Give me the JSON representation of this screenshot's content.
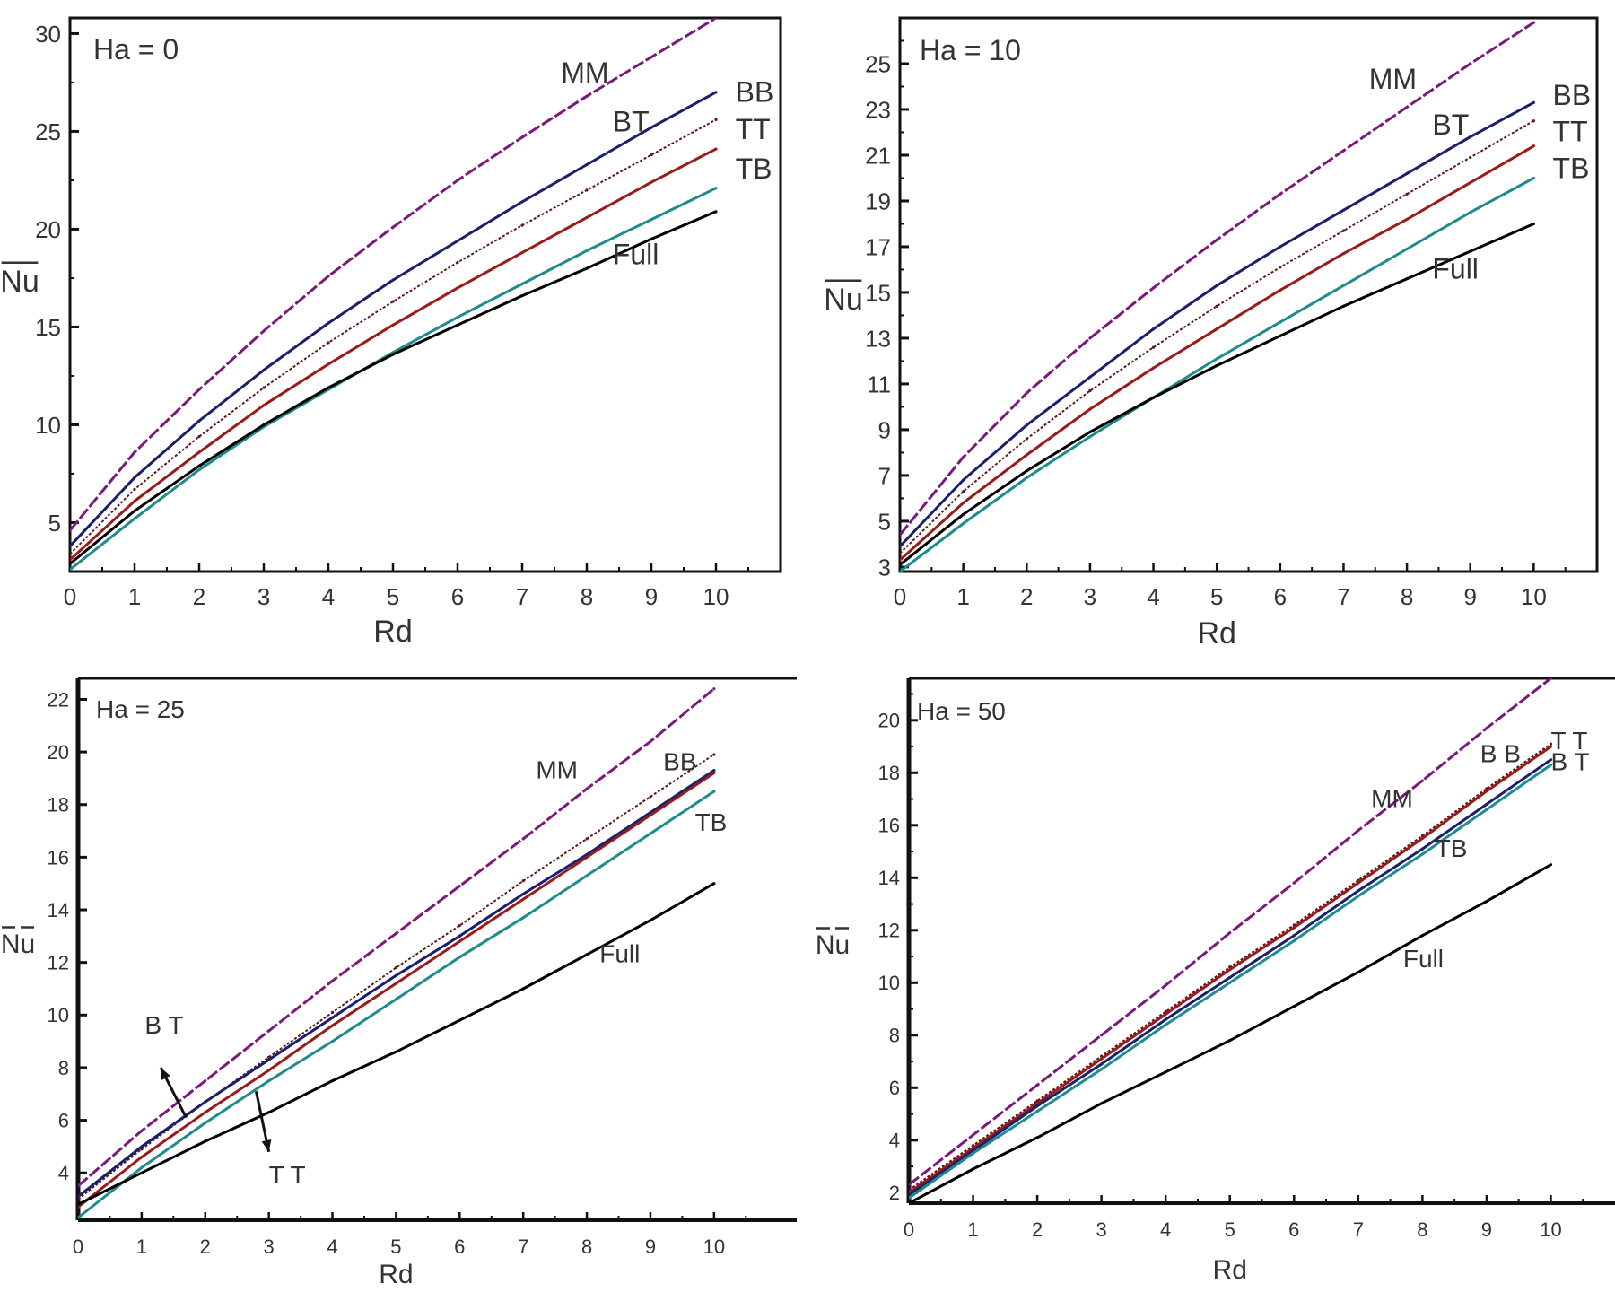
{
  "chart_data": [
    {
      "type": "line",
      "title": "Ha = 0",
      "xlabel": "Rd",
      "ylabel": "Nu",
      "ylabel_overline": true,
      "xlim": [
        0,
        11
      ],
      "ylim": [
        2.5,
        30.8
      ],
      "xticks": [
        0,
        1,
        2,
        3,
        4,
        5,
        6,
        7,
        8,
        9,
        10
      ],
      "xtick_labels": [
        "0",
        "1",
        "2",
        "3",
        "4",
        "5",
        "6",
        "7",
        "8",
        "9",
        "10"
      ],
      "yticks": [
        5,
        10,
        15,
        20,
        25,
        30
      ],
      "ytick_labels": [
        "5",
        "10",
        "15",
        "20",
        "25",
        "30"
      ],
      "grid": false,
      "x": [
        0,
        1,
        2,
        3,
        4,
        5,
        6,
        7,
        8,
        9,
        10
      ],
      "series": [
        {
          "name": "MM",
          "color": "#7b1a7b",
          "values": [
            4.6,
            8.6,
            11.8,
            14.8,
            17.6,
            20.1,
            22.5,
            24.7,
            26.8,
            28.8,
            30.8
          ]
        },
        {
          "name": "BT",
          "color": "#1a1f6e",
          "values": [
            3.8,
            7.3,
            10.2,
            12.8,
            15.2,
            17.4,
            19.4,
            21.4,
            23.3,
            25.2,
            27.0
          ]
        },
        {
          "name": "BB",
          "color": "#5a1a1a",
          "values": [
            3.4,
            6.7,
            9.4,
            11.9,
            14.2,
            16.3,
            18.3,
            20.2,
            22.0,
            23.8,
            25.6
          ]
        },
        {
          "name": "TT",
          "color": "#9b1b1b",
          "values": [
            3.1,
            6.1,
            8.6,
            11.0,
            13.1,
            15.1,
            17.0,
            18.8,
            20.6,
            22.4,
            24.1
          ]
        },
        {
          "name": "TB",
          "color": "#1f8b8b",
          "values": [
            2.6,
            5.2,
            7.7,
            9.9,
            11.8,
            13.7,
            15.5,
            17.2,
            18.9,
            20.5,
            22.1
          ]
        },
        {
          "name": "Full",
          "color": "#000000",
          "values": [
            2.9,
            5.6,
            7.9,
            10.0,
            11.9,
            13.6,
            15.1,
            16.6,
            18.0,
            19.5,
            20.9
          ]
        }
      ],
      "annotations": [
        {
          "text": "MM",
          "x": 7.6,
          "y": 27.5
        },
        {
          "text": "BT",
          "x": 8.4,
          "y": 25.0
        },
        {
          "text": "BB",
          "x": 10.3,
          "y": 26.5
        },
        {
          "text": "TT",
          "x": 10.3,
          "y": 24.6
        },
        {
          "text": "TB",
          "x": 10.3,
          "y": 22.6
        },
        {
          "text": "Full",
          "x": 8.4,
          "y": 18.2
        }
      ]
    },
    {
      "type": "line",
      "title": "Ha = 10",
      "xlabel": "Rd",
      "ylabel": "Nu",
      "ylabel_overline": true,
      "xlim": [
        0,
        11
      ],
      "ylim": [
        2.8,
        27
      ],
      "xticks": [
        0,
        1,
        2,
        3,
        4,
        5,
        6,
        7,
        8,
        9,
        10
      ],
      "xtick_labels": [
        "0",
        "1",
        "2",
        "3",
        "4",
        "5",
        "6",
        "7",
        "8",
        "9",
        "10"
      ],
      "yticks": [
        3,
        5,
        7,
        9,
        11,
        13,
        15,
        17,
        19,
        21,
        23,
        25
      ],
      "ytick_labels": [
        "3",
        "5",
        "7",
        "9",
        "11",
        "13",
        "15",
        "17",
        "19",
        "21",
        "23",
        "25"
      ],
      "grid": false,
      "x": [
        0,
        1,
        2,
        3,
        4,
        5,
        6,
        7,
        8,
        9,
        10
      ],
      "series": [
        {
          "name": "MM",
          "color": "#7b1a7b",
          "values": [
            4.4,
            7.8,
            10.6,
            13.0,
            15.2,
            17.3,
            19.3,
            21.2,
            23.1,
            25.0,
            26.8
          ]
        },
        {
          "name": "BT",
          "color": "#1a1f6e",
          "values": [
            3.9,
            6.8,
            9.2,
            11.3,
            13.4,
            15.3,
            17.0,
            18.6,
            20.2,
            21.8,
            23.3
          ]
        },
        {
          "name": "BB",
          "color": "#5a1a1a",
          "values": [
            3.6,
            6.3,
            8.6,
            10.7,
            12.6,
            14.4,
            16.1,
            17.7,
            19.3,
            20.9,
            22.5
          ]
        },
        {
          "name": "TT",
          "color": "#9b1b1b",
          "values": [
            3.3,
            5.8,
            7.9,
            9.9,
            11.7,
            13.4,
            15.1,
            16.7,
            18.2,
            19.8,
            21.4
          ]
        },
        {
          "name": "TB",
          "color": "#1f8b8b",
          "values": [
            2.8,
            4.9,
            6.9,
            8.7,
            10.4,
            12.1,
            13.7,
            15.3,
            16.9,
            18.5,
            20.0
          ]
        },
        {
          "name": "Full",
          "color": "#000000",
          "values": [
            3.1,
            5.3,
            7.2,
            8.9,
            10.4,
            11.8,
            13.1,
            14.4,
            15.6,
            16.8,
            18.0
          ]
        }
      ],
      "annotations": [
        {
          "text": "MM",
          "x": 7.4,
          "y": 23.9
        },
        {
          "text": "BT",
          "x": 8.4,
          "y": 21.9
        },
        {
          "text": "BB",
          "x": 10.3,
          "y": 23.2
        },
        {
          "text": "TT",
          "x": 10.3,
          "y": 21.6
        },
        {
          "text": "TB",
          "x": 10.3,
          "y": 20.0
        },
        {
          "text": "Full",
          "x": 8.4,
          "y": 15.6
        }
      ]
    },
    {
      "type": "line",
      "title": "Ha = 25",
      "xlabel": "Rd",
      "ylabel": "Nu",
      "ylabel_overline": true,
      "xlim": [
        0,
        11.3
      ],
      "ylim": [
        2.2,
        22.8
      ],
      "xticks": [
        0,
        1,
        2,
        3,
        4,
        5,
        6,
        7,
        8,
        9,
        10
      ],
      "xtick_labels": [
        "0",
        "1",
        "2",
        "3",
        "4",
        "5",
        "6",
        "7",
        "8",
        "9",
        "10"
      ],
      "yticks": [
        4,
        6,
        8,
        10,
        12,
        14,
        16,
        18,
        20,
        22
      ],
      "ytick_labels": [
        "4",
        "6",
        "8",
        "10",
        "12",
        "14",
        "16",
        "18",
        "20",
        "22"
      ],
      "grid": false,
      "x": [
        0,
        1,
        2,
        3,
        4,
        5,
        6,
        7,
        8,
        9,
        10
      ],
      "series": [
        {
          "name": "MM",
          "color": "#7b1a7b",
          "values": [
            3.5,
            5.6,
            7.5,
            9.4,
            11.3,
            13.1,
            14.9,
            16.7,
            18.6,
            20.4,
            22.4
          ]
        },
        {
          "name": "BB",
          "color": "#5a1a1a",
          "values": [
            3.0,
            4.9,
            6.7,
            8.4,
            10.1,
            11.8,
            13.4,
            15.1,
            16.7,
            18.3,
            19.9
          ]
        },
        {
          "name": "BT",
          "color": "#1a1f6e",
          "values": [
            3.1,
            5.0,
            6.7,
            8.3,
            9.9,
            11.5,
            13.0,
            14.6,
            16.1,
            17.7,
            19.3
          ]
        },
        {
          "name": "TT",
          "color": "#9b1b1b",
          "values": [
            2.7,
            4.6,
            6.3,
            7.9,
            9.6,
            11.2,
            12.8,
            14.4,
            16.0,
            17.6,
            19.2
          ]
        },
        {
          "name": "TB",
          "color": "#1f8b8b",
          "values": [
            2.3,
            4.2,
            5.9,
            7.5,
            9.0,
            10.6,
            12.2,
            13.7,
            15.3,
            16.9,
            18.5
          ]
        },
        {
          "name": "Full",
          "color": "#000000",
          "values": [
            2.8,
            4.0,
            5.2,
            6.3,
            7.5,
            8.6,
            9.8,
            11.0,
            12.3,
            13.6,
            15.0
          ]
        }
      ],
      "annotations": [
        {
          "text": "MM",
          "x": 7.2,
          "y": 19.0
        },
        {
          "text": "BB",
          "x": 9.2,
          "y": 19.3
        },
        {
          "text": "TB",
          "x": 9.7,
          "y": 17.0
        },
        {
          "text": "Full",
          "x": 8.2,
          "y": 12.0
        },
        {
          "text": "B T",
          "x": 1.05,
          "y": 9.3
        },
        {
          "text": "T T",
          "x": 3.0,
          "y": 3.6
        }
      ],
      "arrows": [
        {
          "from": [
            1.7,
            6.1
          ],
          "to": [
            1.3,
            8.0
          ]
        },
        {
          "from": [
            2.8,
            7.1
          ],
          "to": [
            3.0,
            4.8
          ]
        }
      ]
    },
    {
      "type": "line",
      "title": "Ha = 50",
      "xlabel": "Rd",
      "ylabel": "Nu",
      "ylabel_overline": true,
      "xlim": [
        0,
        11.0
      ],
      "ylim": [
        1.6,
        21.6
      ],
      "xticks": [
        0,
        1,
        2,
        3,
        4,
        5,
        6,
        7,
        8,
        9,
        10
      ],
      "xtick_labels": [
        "0",
        "1",
        "2",
        "3",
        "4",
        "5",
        "6",
        "7",
        "8",
        "9",
        "10"
      ],
      "yticks": [
        2,
        4,
        6,
        8,
        10,
        12,
        14,
        16,
        18,
        20
      ],
      "ytick_labels": [
        "2",
        "4",
        "6",
        "8",
        "10",
        "12",
        "14",
        "16",
        "18",
        "20"
      ],
      "grid": false,
      "x": [
        0,
        1,
        2,
        3,
        4,
        5,
        6,
        7,
        8,
        9,
        10
      ],
      "series": [
        {
          "name": "MM",
          "color": "#7b1a7b",
          "values": [
            2.3,
            4.2,
            6.1,
            8.0,
            9.9,
            11.9,
            13.8,
            15.8,
            17.7,
            19.7,
            21.6
          ]
        },
        {
          "name": "BB",
          "color": "#5a1a1a",
          "values": [
            2.1,
            3.8,
            5.5,
            7.2,
            8.9,
            10.6,
            12.2,
            13.9,
            15.6,
            17.4,
            19.1
          ]
        },
        {
          "name": "TT",
          "color": "#9b1b1b",
          "values": [
            2.0,
            3.7,
            5.4,
            7.1,
            8.8,
            10.5,
            12.1,
            13.8,
            15.5,
            17.3,
            19.0
          ]
        },
        {
          "name": "BT",
          "color": "#1a1f6e",
          "values": [
            1.9,
            3.6,
            5.3,
            6.9,
            8.6,
            10.2,
            11.8,
            13.5,
            15.1,
            16.8,
            18.5
          ]
        },
        {
          "name": "TB",
          "color": "#1f8b8b",
          "values": [
            1.8,
            3.5,
            5.1,
            6.7,
            8.4,
            10.0,
            11.6,
            13.3,
            14.9,
            16.6,
            18.3
          ]
        },
        {
          "name": "Full",
          "color": "#000000",
          "values": [
            1.6,
            2.9,
            4.1,
            5.4,
            6.6,
            7.8,
            9.1,
            10.4,
            11.8,
            13.1,
            14.5
          ]
        }
      ],
      "annotations": [
        {
          "text": "MM",
          "x": 7.2,
          "y": 16.7
        },
        {
          "text": "B B",
          "x": 8.9,
          "y": 18.4
        },
        {
          "text": "T T",
          "x": 10.0,
          "y": 18.9
        },
        {
          "text": "B T",
          "x": 10.0,
          "y": 18.1
        },
        {
          "text": "TB",
          "x": 8.2,
          "y": 14.8
        },
        {
          "text": "Full",
          "x": 7.7,
          "y": 10.6
        }
      ]
    }
  ]
}
